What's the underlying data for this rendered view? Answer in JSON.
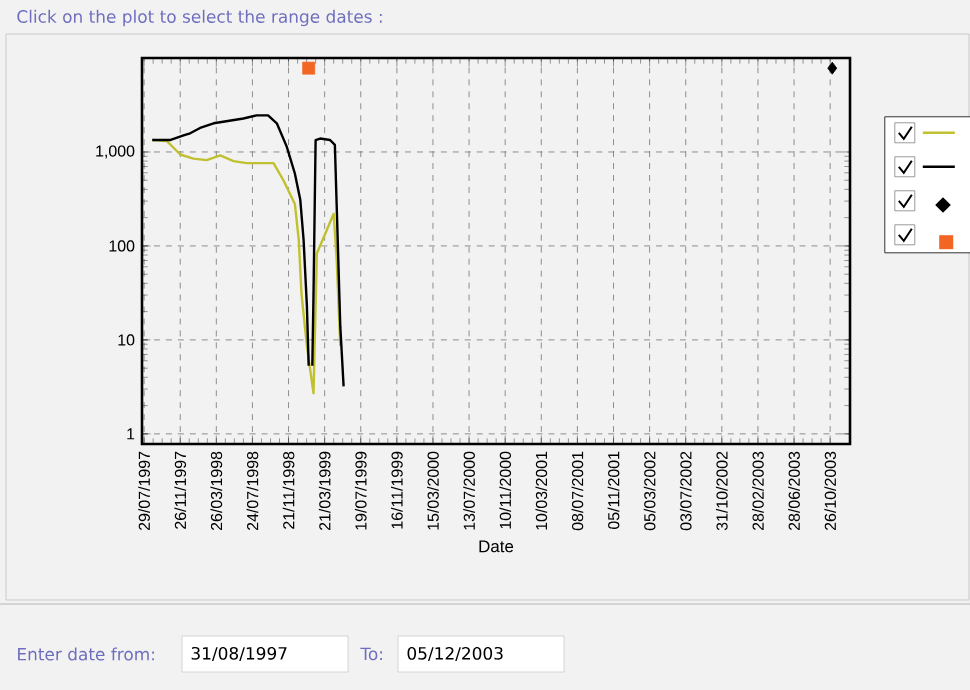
{
  "chart_data": {
    "type": "line",
    "title": "Click on the plot to select the range dates :",
    "xlabel": "Date",
    "annotations": [
      "Enter date from:",
      "31/08/1997",
      "To:",
      "05/12/2003"
    ],
    "xlim": [
      "1997-07-22",
      "2003-12-31"
    ],
    "ylim": [
      0.78,
      10000
    ],
    "log": "y",
    "grid": true,
    "xticks": [
      {
        "value": "1997-07-29",
        "label": "29/07/1997"
      },
      {
        "value": "1997-11-26",
        "label": "26/11/1997"
      },
      {
        "value": "1998-03-26",
        "label": "26/03/1998"
      },
      {
        "value": "1998-07-24",
        "label": "24/07/1998"
      },
      {
        "value": "1998-11-21",
        "label": "21/11/1998"
      },
      {
        "value": "1999-03-21",
        "label": "21/03/1999"
      },
      {
        "value": "1999-07-19",
        "label": "19/07/1999"
      },
      {
        "value": "1999-11-16",
        "label": "16/11/1999"
      },
      {
        "value": "2000-03-15",
        "label": "15/03/2000"
      },
      {
        "value": "2000-07-13",
        "label": "13/07/2000"
      },
      {
        "value": "2000-11-10",
        "label": "10/11/2000"
      },
      {
        "value": "2001-03-10",
        "label": "10/03/2001"
      },
      {
        "value": "2001-07-08",
        "label": "08/07/2001"
      },
      {
        "value": "2001-11-05",
        "label": "05/11/2001"
      },
      {
        "value": "2002-03-05",
        "label": "05/03/2002"
      },
      {
        "value": "2002-07-03",
        "label": "03/07/2002"
      },
      {
        "value": "2002-10-31",
        "label": "31/10/2002"
      },
      {
        "value": "2003-02-28",
        "label": "28/02/2003"
      },
      {
        "value": "2003-06-28",
        "label": "28/06/2003"
      },
      {
        "value": "2003-10-26",
        "label": "26/10/2003"
      }
    ],
    "yticks": [
      1,
      10,
      100,
      {
        "value": 1000,
        "label": "1,000"
      }
    ],
    "series": [
      {
        "color": "#c0c030",
        "marker": "none",
        "line_style": "solid",
        "x": [
          "1997-08-25",
          "1997-10-12",
          "1997-11-26",
          "1998-01-09",
          "1998-02-22",
          "1998-04-08",
          "1998-05-22",
          "1998-07-05",
          "1998-10-02",
          "1998-11-04",
          "1998-12-12",
          "1998-12-25",
          "1999-01-03",
          "1999-01-21",
          "1999-02-12",
          "1999-02-23",
          "1999-04-20",
          "1999-04-30",
          "1999-05-12"
        ],
        "values": [
          1340,
          1310,
          940,
          850,
          820,
          920,
          800,
          760,
          760,
          500,
          280,
          116,
          31,
          8.6,
          2.7,
          83,
          220,
          71,
          8.6
        ]
      },
      {
        "color": "#000000",
        "marker": "none",
        "line_style": "solid",
        "x": [
          "1997-08-25",
          "1997-10-23",
          "1997-12-07",
          "1997-12-29",
          "1998-01-31",
          "1998-03-17",
          "1998-04-28",
          "1998-06-24",
          "1998-08-07",
          "1998-09-14",
          "1998-10-13",
          "1998-11-15",
          "1998-12-12",
          "1998-12-30",
          "1999-01-10",
          "1999-01-21",
          "1999-01-27",
          "1999-02-01",
          "1999-02-08",
          "1999-02-12",
          "1999-02-16",
          "1999-02-19",
          "1999-03-06",
          "1999-04-08",
          "1999-04-24",
          "1999-04-30",
          "1999-05-12",
          "1999-05-23"
        ],
        "values": [
          1340,
          1340,
          1500,
          1580,
          1800,
          2020,
          2120,
          2270,
          2450,
          2450,
          2020,
          1140,
          590,
          310,
          116,
          23,
          5.3,
          null,
          5.3,
          31,
          270,
          1340,
          1390,
          1340,
          1190,
          270,
          14,
          3.2
        ]
      },
      {
        "type": "scatter",
        "color": "#000000",
        "marker": "diamond",
        "x": [
          "2003-11-02"
        ],
        "values": [
          7800
        ]
      },
      {
        "type": "scatter",
        "color": "#f26522",
        "marker": "square",
        "x": [
          "1999-01-27"
        ],
        "values": [
          7800
        ]
      }
    ]
  }
}
